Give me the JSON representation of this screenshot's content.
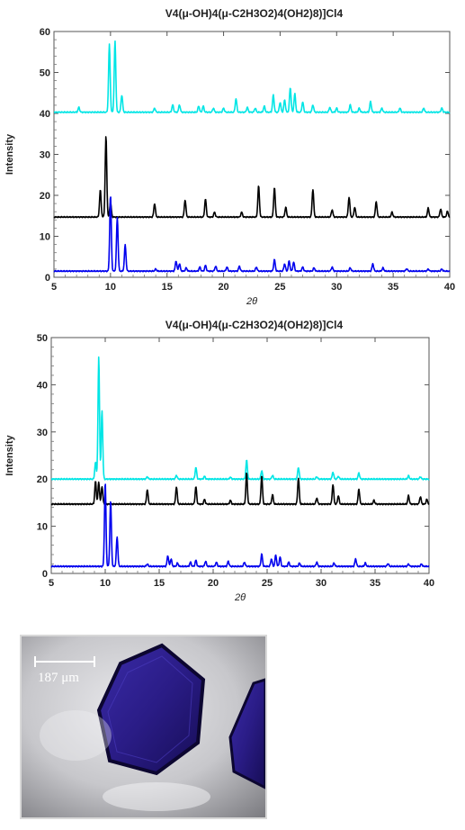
{
  "chart_data": [
    {
      "type": "line",
      "title": "V4(μ-OH)4(μ-C2H3O2)4(OH2)8)]Cl4",
      "xlabel": "2θ",
      "ylabel": "Intensity",
      "xlim": [
        5,
        40
      ],
      "ylim": [
        0,
        60
      ],
      "xticks": [
        5,
        10,
        15,
        20,
        25,
        30,
        35,
        40
      ],
      "yticks": [
        0,
        10,
        20,
        30,
        40,
        50,
        60
      ],
      "grid": false,
      "series": [
        {
          "color": "#00e5e5",
          "baseline": 40.3,
          "peaks": [
            [
              7.2,
              1.2
            ],
            [
              9.9,
              16.5
            ],
            [
              10.4,
              17.3
            ],
            [
              11.0,
              4.2
            ],
            [
              13.9,
              1.0
            ],
            [
              15.5,
              1.8
            ],
            [
              16.1,
              1.8
            ],
            [
              17.8,
              1.5
            ],
            [
              18.2,
              1.5
            ],
            [
              19.1,
              1.0
            ],
            [
              20.0,
              1.0
            ],
            [
              21.1,
              3.3
            ],
            [
              22.1,
              1.2
            ],
            [
              22.8,
              1.0
            ],
            [
              23.6,
              1.5
            ],
            [
              24.4,
              4.2
            ],
            [
              25.0,
              2.4
            ],
            [
              25.4,
              3.0
            ],
            [
              25.9,
              6.0
            ],
            [
              26.3,
              4.5
            ],
            [
              27.0,
              2.5
            ],
            [
              27.9,
              1.8
            ],
            [
              29.4,
              1.2
            ],
            [
              30.0,
              1.0
            ],
            [
              31.2,
              1.8
            ],
            [
              32.0,
              1.0
            ],
            [
              33.0,
              2.6
            ],
            [
              34.0,
              1.0
            ],
            [
              35.6,
              1.0
            ],
            [
              37.7,
              1.0
            ],
            [
              39.3,
              1.0
            ]
          ]
        },
        {
          "color": "#000000",
          "baseline": 14.7,
          "peaks": [
            [
              9.1,
              6.6
            ],
            [
              9.6,
              19.8
            ],
            [
              10.0,
              3.6
            ],
            [
              13.9,
              3.3
            ],
            [
              16.6,
              4.2
            ],
            [
              18.4,
              4.4
            ],
            [
              19.2,
              1.2
            ],
            [
              21.6,
              1.2
            ],
            [
              23.1,
              7.6
            ],
            [
              24.5,
              7.2
            ],
            [
              25.5,
              2.4
            ],
            [
              27.9,
              6.8
            ],
            [
              29.6,
              1.8
            ],
            [
              31.1,
              4.9
            ],
            [
              31.6,
              2.4
            ],
            [
              33.5,
              3.8
            ],
            [
              34.9,
              1.2
            ],
            [
              38.1,
              2.2
            ],
            [
              39.2,
              2.0
            ],
            [
              39.8,
              1.4
            ]
          ]
        },
        {
          "color": "#0000ee",
          "baseline": 1.5,
          "peaks": [
            [
              10.0,
              18.5
            ],
            [
              10.6,
              13.1
            ],
            [
              11.3,
              6.4
            ],
            [
              14.0,
              0.5
            ],
            [
              15.8,
              2.5
            ],
            [
              16.1,
              1.8
            ],
            [
              16.7,
              0.8
            ],
            [
              17.9,
              1.0
            ],
            [
              18.4,
              1.4
            ],
            [
              19.3,
              1.2
            ],
            [
              20.3,
              1.0
            ],
            [
              21.4,
              1.2
            ],
            [
              22.9,
              1.0
            ],
            [
              24.5,
              2.8
            ],
            [
              25.4,
              1.8
            ],
            [
              25.8,
              2.5
            ],
            [
              26.2,
              2.2
            ],
            [
              27.0,
              1.0
            ],
            [
              28.0,
              0.8
            ],
            [
              29.6,
              1.0
            ],
            [
              31.2,
              0.8
            ],
            [
              33.2,
              1.8
            ],
            [
              34.1,
              0.8
            ],
            [
              36.2,
              0.6
            ],
            [
              38.1,
              0.5
            ],
            [
              39.3,
              0.5
            ]
          ]
        }
      ]
    },
    {
      "type": "line",
      "title": "V4(μ-OH)4(μ-C2H3O2)4(OH2)8)]Cl4",
      "xlabel": "2θ",
      "ylabel": "Intensity",
      "xlim": [
        5,
        40
      ],
      "ylim": [
        0,
        50
      ],
      "xticks": [
        5,
        10,
        15,
        20,
        25,
        30,
        35,
        40
      ],
      "yticks": [
        0,
        10,
        20,
        30,
        40,
        50
      ],
      "grid": false,
      "series": [
        {
          "color": "#00e5e5",
          "baseline": 20.0,
          "peaks": [
            [
              9.1,
              3.6
            ],
            [
              9.4,
              25.8
            ],
            [
              9.7,
              14.6
            ],
            [
              13.9,
              0.5
            ],
            [
              16.6,
              0.8
            ],
            [
              18.4,
              2.5
            ],
            [
              19.2,
              0.6
            ],
            [
              21.6,
              0.4
            ],
            [
              23.1,
              4.0
            ],
            [
              24.5,
              1.8
            ],
            [
              25.5,
              0.8
            ],
            [
              27.9,
              2.5
            ],
            [
              29.6,
              0.5
            ],
            [
              31.1,
              1.5
            ],
            [
              31.6,
              0.6
            ],
            [
              33.5,
              1.3
            ],
            [
              38.1,
              0.7
            ],
            [
              39.2,
              0.5
            ]
          ]
        },
        {
          "color": "#000000",
          "baseline": 14.7,
          "peaks": [
            [
              9.1,
              4.8
            ],
            [
              9.4,
              4.6
            ],
            [
              9.7,
              3.8
            ],
            [
              13.9,
              3.1
            ],
            [
              16.6,
              3.7
            ],
            [
              18.4,
              3.7
            ],
            [
              19.2,
              1.0
            ],
            [
              21.6,
              0.8
            ],
            [
              23.1,
              6.6
            ],
            [
              24.5,
              6.0
            ],
            [
              25.5,
              2.0
            ],
            [
              27.9,
              5.6
            ],
            [
              29.6,
              1.3
            ],
            [
              31.1,
              4.2
            ],
            [
              31.6,
              1.8
            ],
            [
              33.5,
              3.2
            ],
            [
              34.9,
              0.8
            ],
            [
              38.1,
              1.8
            ],
            [
              39.2,
              1.6
            ],
            [
              39.8,
              1.0
            ]
          ]
        },
        {
          "color": "#0000ee",
          "baseline": 1.5,
          "peaks": [
            [
              10.0,
              17.8
            ],
            [
              10.5,
              14.0
            ],
            [
              11.1,
              6.3
            ],
            [
              13.9,
              0.5
            ],
            [
              15.8,
              2.3
            ],
            [
              16.1,
              1.6
            ],
            [
              16.7,
              0.7
            ],
            [
              17.9,
              0.9
            ],
            [
              18.4,
              1.3
            ],
            [
              19.3,
              1.1
            ],
            [
              20.3,
              0.9
            ],
            [
              21.4,
              1.1
            ],
            [
              22.9,
              0.9
            ],
            [
              24.5,
              2.6
            ],
            [
              25.4,
              1.6
            ],
            [
              25.8,
              2.4
            ],
            [
              26.2,
              2.0
            ],
            [
              27.0,
              0.9
            ],
            [
              28.0,
              0.7
            ],
            [
              29.6,
              0.9
            ],
            [
              31.2,
              0.7
            ],
            [
              33.2,
              1.6
            ],
            [
              34.1,
              0.7
            ],
            [
              36.2,
              0.6
            ],
            [
              38.1,
              0.5
            ],
            [
              39.3,
              0.5
            ]
          ]
        }
      ]
    }
  ],
  "photo": {
    "scale_label": "187 μm",
    "crystal_color": "#2d1f8c"
  }
}
